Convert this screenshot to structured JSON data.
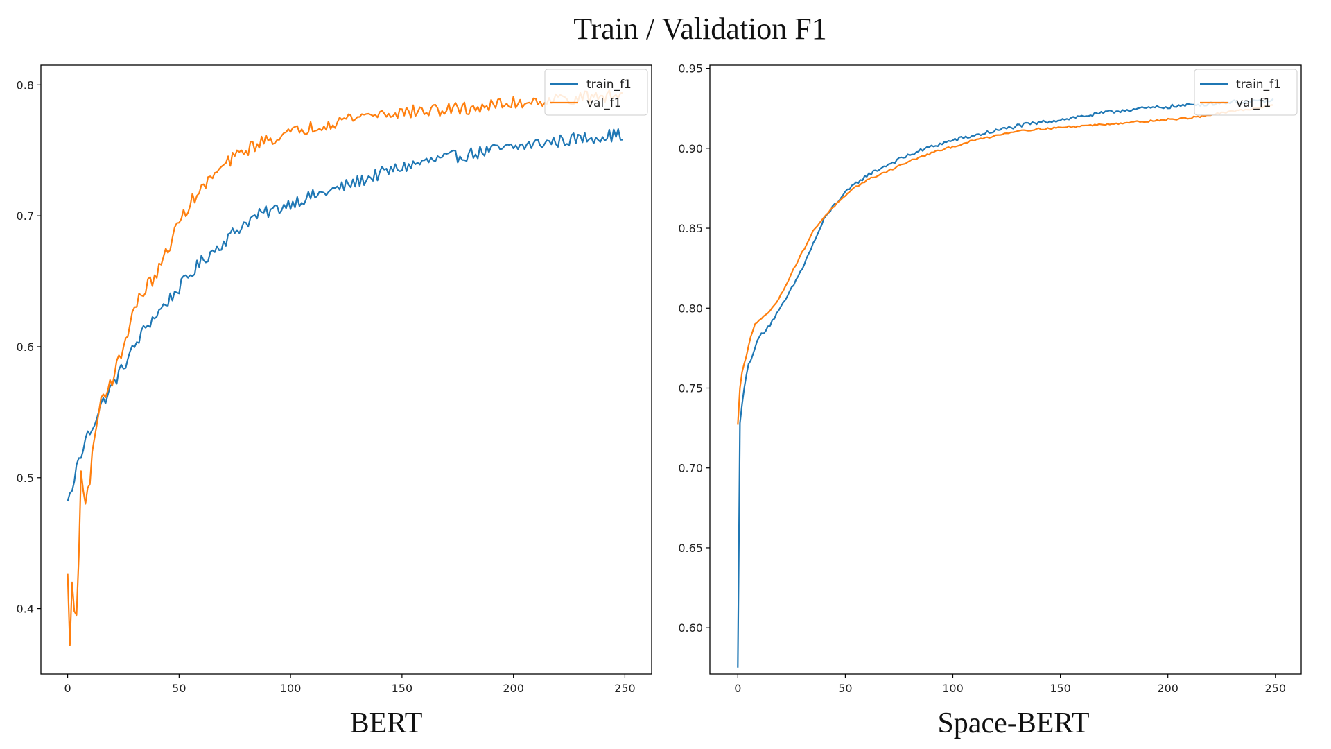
{
  "figure": {
    "title": "Train / Validation F1"
  },
  "colors": {
    "train": "#1f77b4",
    "val": "#ff7f0e",
    "axis": "#000000",
    "legend_border": "#cccccc"
  },
  "chart_data": [
    {
      "type": "line",
      "caption": "BERT",
      "xlim": [
        -12,
        262
      ],
      "ylim": [
        0.35,
        0.815
      ],
      "xticks": [
        0,
        50,
        100,
        150,
        200,
        250
      ],
      "xtick_labels": [
        "0",
        "50",
        "100",
        "150",
        "200",
        "250"
      ],
      "yticks": [
        0.4,
        0.5,
        0.6,
        0.7,
        0.8
      ],
      "ytick_labels": [
        "0.4",
        "0.5",
        "0.6",
        "0.7",
        "0.8"
      ],
      "legend": {
        "position": "upper right",
        "entries": [
          "train_f1",
          "val_f1"
        ]
      },
      "series": [
        {
          "name": "train_f1",
          "color_key": "train",
          "x": [
            0,
            2,
            4,
            6,
            8,
            10,
            15,
            20,
            25,
            30,
            35,
            40,
            45,
            50,
            55,
            60,
            65,
            70,
            75,
            80,
            85,
            90,
            95,
            100,
            110,
            120,
            130,
            140,
            150,
            160,
            170,
            180,
            190,
            200,
            210,
            220,
            230,
            240,
            249
          ],
          "y": [
            0.482,
            0.49,
            0.51,
            0.515,
            0.53,
            0.535,
            0.555,
            0.57,
            0.585,
            0.6,
            0.615,
            0.625,
            0.635,
            0.645,
            0.655,
            0.665,
            0.673,
            0.68,
            0.688,
            0.695,
            0.7,
            0.703,
            0.706,
            0.71,
            0.715,
            0.72,
            0.726,
            0.732,
            0.737,
            0.741,
            0.744,
            0.747,
            0.75,
            0.752,
            0.755,
            0.757,
            0.759,
            0.761,
            0.762
          ],
          "noise": 0.005
        },
        {
          "name": "val_f1",
          "color_key": "val",
          "x": [
            0,
            1,
            2,
            3,
            4,
            5,
            6,
            7,
            8,
            10,
            12,
            15,
            20,
            25,
            30,
            35,
            40,
            45,
            50,
            55,
            60,
            65,
            70,
            75,
            80,
            85,
            90,
            95,
            100,
            110,
            120,
            130,
            140,
            150,
            160,
            170,
            180,
            190,
            200,
            210,
            220,
            230,
            240,
            249
          ],
          "y": [
            0.427,
            0.372,
            0.42,
            0.398,
            0.395,
            0.44,
            0.505,
            0.49,
            0.48,
            0.5,
            0.53,
            0.56,
            0.575,
            0.6,
            0.63,
            0.645,
            0.655,
            0.675,
            0.695,
            0.71,
            0.72,
            0.73,
            0.738,
            0.745,
            0.75,
            0.755,
            0.758,
            0.761,
            0.763,
            0.768,
            0.772,
            0.776,
            0.778,
            0.779,
            0.78,
            0.781,
            0.782,
            0.784,
            0.786,
            0.788,
            0.789,
            0.79,
            0.791,
            0.792
          ],
          "noise": 0.005
        }
      ]
    },
    {
      "type": "line",
      "caption": "Space-BERT",
      "xlim": [
        -13,
        262
      ],
      "ylim": [
        0.571,
        0.952
      ],
      "xticks": [
        0,
        50,
        100,
        150,
        200,
        250
      ],
      "xtick_labels": [
        "0",
        "50",
        "100",
        "150",
        "200",
        "250"
      ],
      "yticks": [
        0.6,
        0.65,
        0.7,
        0.75,
        0.8,
        0.85,
        0.9,
        0.95
      ],
      "ytick_labels": [
        "0.60",
        "0.65",
        "0.70",
        "0.75",
        "0.80",
        "0.85",
        "0.90",
        "0.95"
      ],
      "legend": {
        "position": "upper right",
        "entries": [
          "train_f1",
          "val_f1"
        ]
      },
      "series": [
        {
          "name": "train_f1",
          "color_key": "train",
          "x": [
            0,
            1,
            2,
            3,
            5,
            8,
            10,
            15,
            20,
            25,
            30,
            35,
            40,
            45,
            50,
            55,
            60,
            70,
            80,
            90,
            100,
            110,
            120,
            130,
            140,
            150,
            160,
            170,
            180,
            190,
            200,
            210,
            220,
            230,
            240,
            249
          ],
          "y": [
            0.575,
            0.728,
            0.74,
            0.75,
            0.765,
            0.775,
            0.782,
            0.79,
            0.8,
            0.812,
            0.825,
            0.84,
            0.855,
            0.865,
            0.872,
            0.878,
            0.883,
            0.89,
            0.896,
            0.901,
            0.905,
            0.908,
            0.911,
            0.914,
            0.916,
            0.918,
            0.92,
            0.922,
            0.924,
            0.925,
            0.926,
            0.927,
            0.928,
            0.929,
            0.929,
            0.93
          ],
          "noise": 0.0012
        },
        {
          "name": "val_f1",
          "color_key": "val",
          "x": [
            0,
            1,
            2,
            4,
            6,
            8,
            10,
            15,
            20,
            25,
            30,
            35,
            40,
            45,
            50,
            55,
            60,
            70,
            80,
            90,
            100,
            110,
            120,
            130,
            140,
            150,
            160,
            170,
            180,
            190,
            200,
            210,
            220,
            230,
            240,
            249
          ],
          "y": [
            0.727,
            0.75,
            0.76,
            0.77,
            0.782,
            0.79,
            0.793,
            0.798,
            0.808,
            0.822,
            0.835,
            0.848,
            0.857,
            0.864,
            0.87,
            0.876,
            0.88,
            0.886,
            0.892,
            0.897,
            0.901,
            0.905,
            0.908,
            0.911,
            0.912,
            0.913,
            0.914,
            0.915,
            0.916,
            0.917,
            0.918,
            0.919,
            0.921,
            0.923,
            0.925,
            0.927
          ],
          "noise": 0.0006
        }
      ]
    }
  ]
}
